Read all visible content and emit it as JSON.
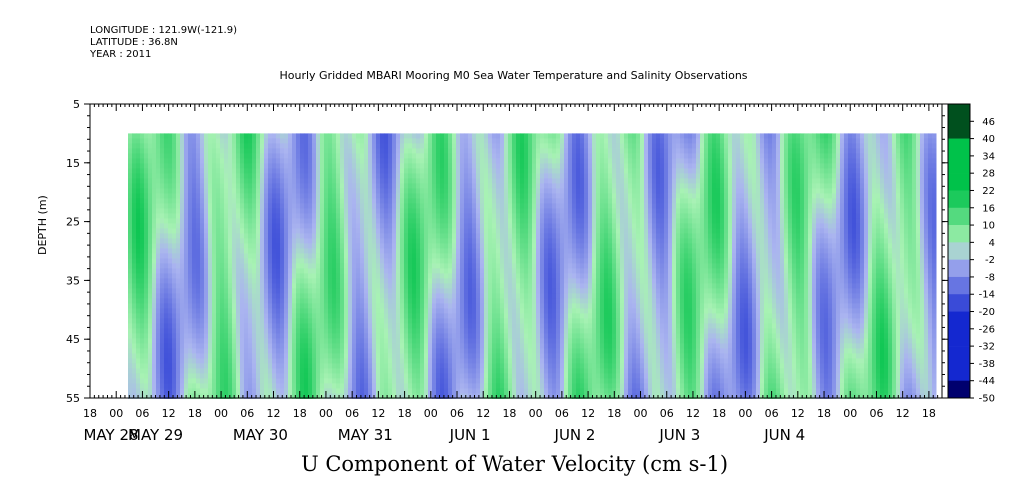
{
  "header": {
    "longitude": "LONGITUDE : 121.9W(-121.9)",
    "latitude": "LATITUDE : 36.8N",
    "year": "YEAR : 2011"
  },
  "chart_data": {
    "type": "heatmap",
    "title": "Hourly Gridded MBARI Mooring M0 Sea Water Temperature and Salinity Observations",
    "xlabel": "U Component of Water Velocity (cm s-1)",
    "ylabel": "DEPTH (m)",
    "y_ticks": [
      5,
      15,
      25,
      35,
      45,
      55
    ],
    "ylim": [
      55,
      5
    ],
    "data_depth_range": [
      10,
      55
    ],
    "x_hour_ticks": [
      "18",
      "00",
      "06",
      "12",
      "18",
      "00",
      "06",
      "12",
      "18",
      "00",
      "06",
      "12",
      "18",
      "00",
      "06",
      "12",
      "18",
      "00",
      "06",
      "12",
      "18",
      "00",
      "06",
      "12",
      "18",
      "00",
      "06",
      "12",
      "18",
      "00",
      "06",
      "12",
      "18"
    ],
    "x_day_labels": [
      "MAY 28",
      "MAY 29",
      "MAY 30",
      "MAY 31",
      "JUN  1",
      "JUN  2",
      "JUN  3",
      "JUN  4"
    ],
    "colorbar": {
      "levels": [
        48,
        46,
        40,
        34,
        28,
        22,
        16,
        10,
        4,
        -2,
        -8,
        -14,
        -20,
        -26,
        -32,
        -38,
        -44,
        -50
      ],
      "labels": [
        "46",
        "40",
        "34",
        "28",
        "22",
        "16",
        "10",
        "4",
        "-2",
        "-8",
        "-14",
        "-20",
        "-26",
        "-32",
        "-38",
        "-44",
        "-50"
      ],
      "positive_color": "#00c24a",
      "light_positive_color": "#a8f2b4",
      "light_negative_color": "#aab4f0",
      "negative_color": "#1428d0"
    }
  }
}
